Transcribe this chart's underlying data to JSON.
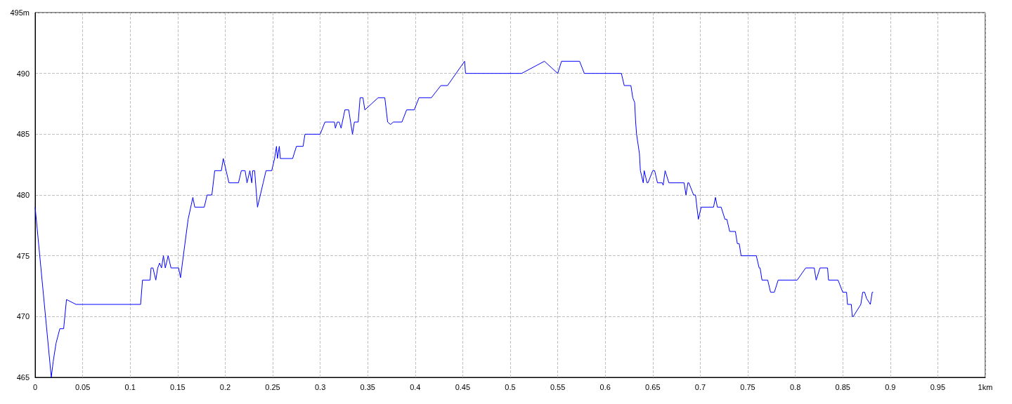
{
  "chart_data": {
    "type": "line",
    "grid": true,
    "marker": "none",
    "line_style": "solid",
    "xlim": [
      0,
      1
    ],
    "xticks": [
      0,
      0.05,
      0.1,
      0.15,
      0.2,
      0.25,
      0.3,
      0.35,
      0.4,
      0.45,
      0.5,
      0.55,
      0.6,
      0.65,
      0.7,
      0.75,
      0.8,
      0.85,
      0.9,
      0.95,
      {
        "value": 1,
        "label": "1km"
      }
    ],
    "ylim": [
      465,
      495
    ],
    "yticks": [
      465,
      470,
      475,
      480,
      485,
      490,
      {
        "value": 495,
        "label": "495m"
      }
    ],
    "series": [
      {
        "color": "#0000ff",
        "x": [
          0,
          0.017,
          0.019,
          0.022,
          0.026,
          0.03,
          0.033,
          0.043,
          0.111,
          0.113,
          0.121,
          0.122,
          0.124,
          0.127,
          0.129,
          0.131,
          0.133,
          0.135,
          0.137,
          0.14,
          0.143,
          0.151,
          0.153,
          0.156,
          0.161,
          0.166,
          0.168,
          0.178,
          0.181,
          0.186,
          0.189,
          0.196,
          0.198,
          0.204,
          0.208,
          0.214,
          0.217,
          0.221,
          0.223,
          0.226,
          0.228,
          0.229,
          0.231,
          0.234,
          0.237,
          0.24,
          0.243,
          0.249,
          0.252,
          0.254,
          0.255,
          0.257,
          0.258,
          0.271,
          0.275,
          0.282,
          0.284,
          0.3,
          0.305,
          0.315,
          0.316,
          0.318,
          0.32,
          0.322,
          0.326,
          0.33,
          0.334,
          0.336,
          0.34,
          0.342,
          0.345,
          0.347,
          0.361,
          0.368,
          0.371,
          0.374,
          0.377,
          0.386,
          0.391,
          0.399,
          0.404,
          0.417,
          0.427,
          0.434,
          0.452,
          0.453,
          0.512,
          0.536,
          0.55,
          0.554,
          0.573,
          0.578,
          0.617,
          0.62,
          0.627,
          0.629,
          0.631,
          0.632,
          0.633,
          0.636,
          0.637,
          0.64,
          0.641,
          0.644,
          0.645,
          0.65,
          0.652,
          0.655,
          0.66,
          0.661,
          0.663,
          0.667,
          0.683,
          0.685,
          0.687,
          0.688,
          0.693,
          0.695,
          0.698,
          0.701,
          0.714,
          0.716,
          0.718,
          0.722,
          0.726,
          0.728,
          0.731,
          0.737,
          0.739,
          0.741,
          0.743,
          0.759,
          0.762,
          0.763,
          0.765,
          0.771,
          0.774,
          0.778,
          0.782,
          0.802,
          0.811,
          0.82,
          0.822,
          0.826,
          0.834,
          0.835,
          0.845,
          0.85,
          0.854,
          0.855,
          0.859,
          0.86,
          0.861,
          0.869,
          0.871,
          0.873,
          0.875,
          0.879,
          0.881,
          0.882
        ],
        "values": [
          479,
          465,
          466.3,
          467.8,
          469,
          469,
          471.4,
          471,
          471,
          473,
          473,
          474,
          474,
          473,
          474,
          474.4,
          474,
          475,
          474,
          475,
          474,
          474,
          473.2,
          475,
          478,
          479.8,
          479,
          479,
          480,
          480,
          482,
          482,
          483,
          481,
          481,
          481,
          482,
          482,
          481,
          482,
          481,
          482,
          482,
          479,
          480,
          481,
          482,
          482,
          483,
          484,
          483,
          484,
          483,
          483,
          484,
          484,
          485,
          485,
          486,
          486,
          485.5,
          486,
          486,
          485.5,
          487,
          487,
          485,
          486,
          486,
          488,
          488,
          487,
          488,
          488,
          486,
          485.8,
          486,
          486,
          487,
          487,
          488,
          488,
          489,
          489,
          491,
          490,
          490,
          491,
          490,
          491,
          491,
          490,
          490,
          489,
          489,
          488,
          487.6,
          486,
          485,
          483.4,
          482,
          481,
          482,
          481,
          481,
          482,
          482,
          481,
          481,
          480.8,
          482,
          481,
          481,
          480,
          481,
          481,
          480,
          480,
          478,
          479,
          479,
          479.8,
          479,
          479,
          478,
          478,
          477,
          477,
          476,
          476,
          475,
          475,
          474,
          474,
          473,
          473,
          472,
          472,
          473,
          473,
          474,
          474,
          473,
          474,
          474,
          473,
          473,
          472,
          472,
          471,
          471,
          470,
          470,
          471,
          472,
          472,
          471.5,
          471,
          472,
          472
        ]
      }
    ]
  }
}
